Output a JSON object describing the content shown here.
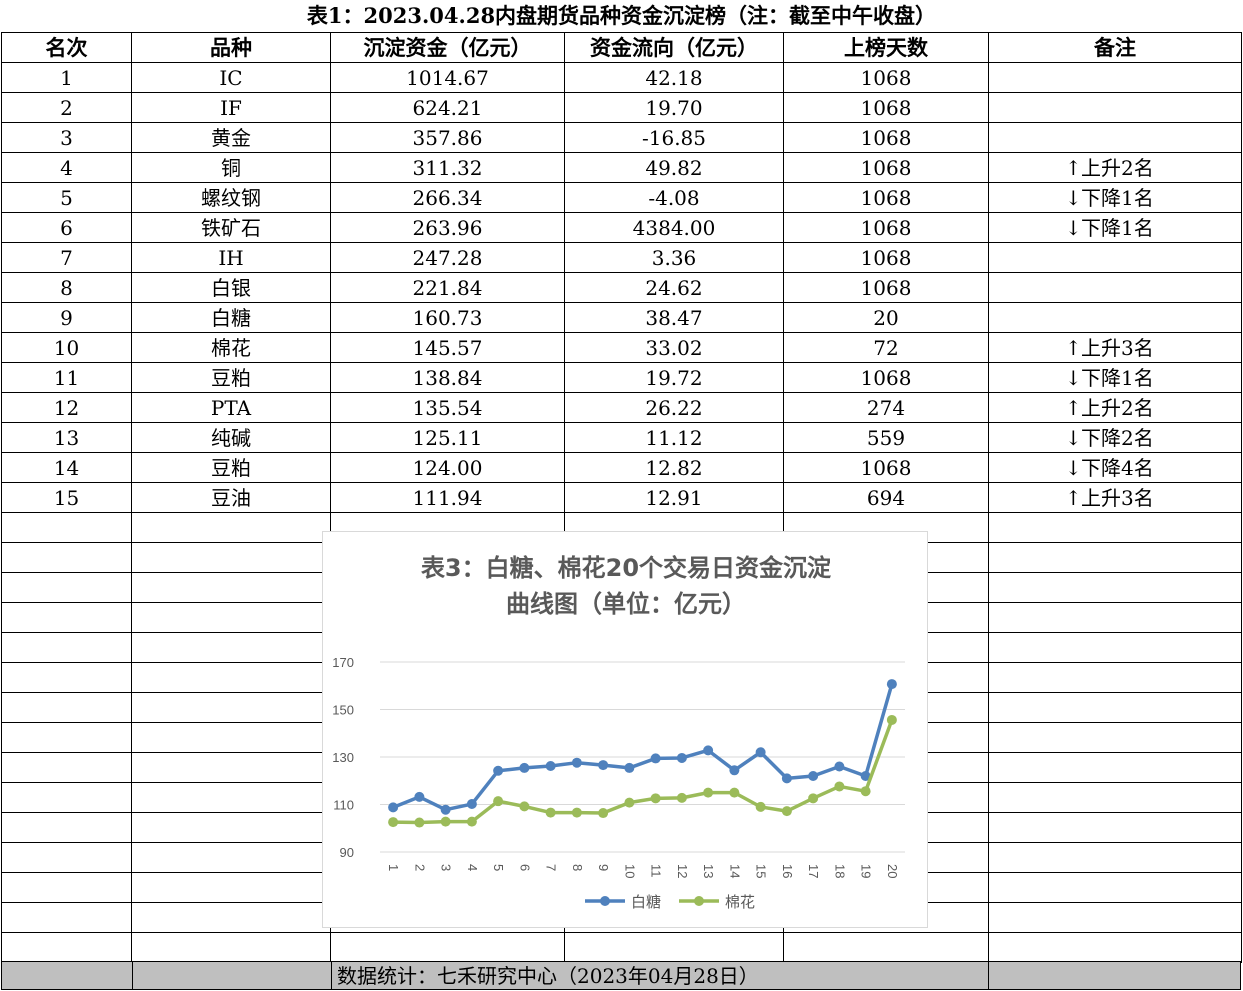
{
  "title": "表1：2023.04.28内盘期货品种资金沉淀榜（注：截至中午收盘）",
  "headers": [
    "名次",
    "品种",
    "沉淀资金（亿元）",
    "资金流向（亿元）",
    "上榜天数",
    "备注"
  ],
  "rows": [
    {
      "rank": "1",
      "name": "IC",
      "fund": "1014.67",
      "flow": "42.18",
      "days": "1068",
      "arrow": "",
      "note": ""
    },
    {
      "rank": "2",
      "name": "IF",
      "fund": "624.21",
      "flow": "19.70",
      "days": "1068",
      "arrow": "",
      "note": ""
    },
    {
      "rank": "3",
      "name": "黄金",
      "fund": "357.86",
      "flow": "-16.85",
      "days": "1068",
      "arrow": "",
      "note": ""
    },
    {
      "rank": "4",
      "name": "铜",
      "fund": "311.32",
      "flow": "49.82",
      "days": "1068",
      "arrow": "↑",
      "note": "上升2名"
    },
    {
      "rank": "5",
      "name": "螺纹钢",
      "fund": "266.34",
      "flow": "-4.08",
      "days": "1068",
      "arrow": "↓",
      "note": "下降1名"
    },
    {
      "rank": "6",
      "name": "铁矿石",
      "fund": "263.96",
      "flow": "4384.00",
      "days": "1068",
      "arrow": "↓",
      "note": "下降1名"
    },
    {
      "rank": "7",
      "name": "IH",
      "fund": "247.28",
      "flow": "3.36",
      "days": "1068",
      "arrow": "",
      "note": ""
    },
    {
      "rank": "8",
      "name": "白银",
      "fund": "221.84",
      "flow": "24.62",
      "days": "1068",
      "arrow": "",
      "note": ""
    },
    {
      "rank": "9",
      "name": "白糖",
      "fund": "160.73",
      "flow": "38.47",
      "days": "20",
      "arrow": "",
      "note": ""
    },
    {
      "rank": "10",
      "name": "棉花",
      "fund": "145.57",
      "flow": "33.02",
      "days": "72",
      "arrow": "↑",
      "note": "上升3名"
    },
    {
      "rank": "11",
      "name": "豆粕",
      "fund": "138.84",
      "flow": "19.72",
      "days": "1068",
      "arrow": "↓",
      "note": "下降1名"
    },
    {
      "rank": "12",
      "name": "PTA",
      "fund": "135.54",
      "flow": "26.22",
      "days": "274",
      "arrow": "↑",
      "note": "上升2名"
    },
    {
      "rank": "13",
      "name": "纯碱",
      "fund": "125.11",
      "flow": "11.12",
      "days": "559",
      "arrow": "↓",
      "note": "下降2名"
    },
    {
      "rank": "14",
      "name": "豆粕",
      "fund": "124.00",
      "flow": "12.82",
      "days": "1068",
      "arrow": "↓",
      "note": "下降4名"
    },
    {
      "rank": "15",
      "name": "豆油",
      "fund": "111.94",
      "flow": "12.91",
      "days": "694",
      "arrow": "↑",
      "note": "上升3名"
    }
  ],
  "footer": "数据统计：七禾研究中心（2023年04月28日）",
  "chart_data": {
    "type": "line",
    "title": "表3：白糖、棉花20个交易日资金沉淀曲线图（单位：亿元）",
    "title_lines": [
      "表3：白糖、棉花20个交易日资金沉淀",
      "曲线图（单位：亿元）"
    ],
    "x": [
      "1",
      "2",
      "3",
      "4",
      "5",
      "6",
      "7",
      "8",
      "9",
      "10",
      "11",
      "12",
      "13",
      "14",
      "15",
      "16",
      "17",
      "18",
      "19",
      "20"
    ],
    "series": [
      {
        "name": "白糖",
        "color": "#4f81bd",
        "values": [
          108.8,
          113.2,
          107.8,
          110.2,
          124.2,
          125.4,
          126.2,
          127.6,
          126.6,
          125.4,
          129.4,
          129.6,
          132.8,
          124.4,
          132.0,
          121.0,
          122.0,
          126.0,
          122.0,
          160.7
        ]
      },
      {
        "name": "棉花",
        "color": "#9bbb59",
        "values": [
          102.6,
          102.4,
          102.8,
          102.8,
          111.4,
          109.2,
          106.6,
          106.6,
          106.4,
          110.8,
          112.6,
          112.8,
          115.0,
          115.0,
          109.0,
          107.2,
          112.6,
          117.6,
          115.6,
          145.6
        ]
      }
    ],
    "yticks": [
      90,
      110,
      130,
      150,
      170
    ],
    "ylim": [
      90,
      170
    ],
    "grid": true,
    "legend": "bottom"
  }
}
